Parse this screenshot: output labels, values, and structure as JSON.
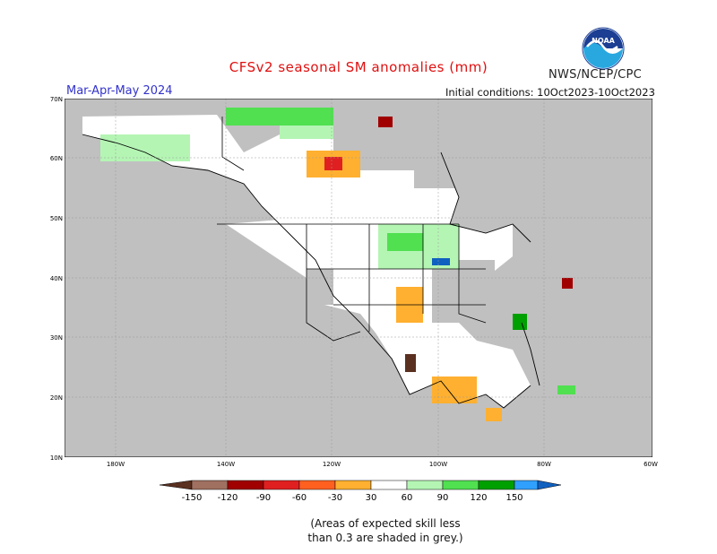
{
  "title": "CFSv2 seasonal SM anomalies (mm)",
  "agency": "NWS/NCEP/CPC",
  "logo_text": "NOAA",
  "period": "Mar-Apr-May 2024",
  "initial_conditions": "Initial conditions: 10Oct2023-10Oct2023",
  "lat_labels": [
    "70N",
    "60N",
    "50N",
    "40N",
    "30N",
    "20N",
    "10N"
  ],
  "lon_labels": [
    "180W",
    "140W",
    "120W",
    "100W",
    "80W",
    "60W"
  ],
  "legend": {
    "ticks": [
      "-150",
      "-120",
      "-90",
      "-60",
      "-30",
      "30",
      "60",
      "90",
      "120",
      "150"
    ],
    "colors": [
      "#5a3020",
      "#a07060",
      "#a00000",
      "#e02020",
      "#ff6020",
      "#ffb030",
      "#ffffff",
      "#b4f5b4",
      "#50e050",
      "#00a000",
      "#30a0ff",
      "#1060c0"
    ]
  },
  "footnote_line1": "(Areas of expected skill less",
  "footnote_line2": "than 0.3 are shaded in grey.)",
  "colors": {
    "grey": "#c0c0c0",
    "land": "#ffffff",
    "title": "#e01010",
    "period": "#3333cc"
  }
}
